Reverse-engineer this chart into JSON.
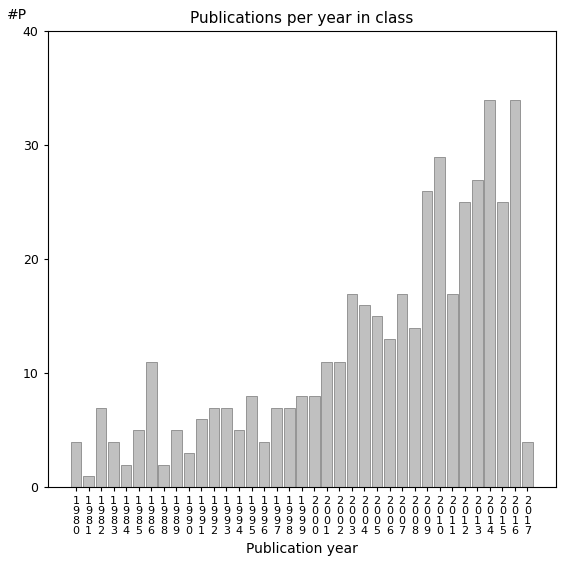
{
  "title": "Publications per year in class",
  "xlabel": "Publication year",
  "ylabel": "#P",
  "ylim": [
    0,
    40
  ],
  "yticks": [
    0,
    10,
    20,
    30,
    40
  ],
  "bar_color": "#c0c0c0",
  "bar_edgecolor": "#888888",
  "categories": [
    "1\n9\n8\n0",
    "1\n9\n8\n1",
    "1\n9\n8\n2",
    "1\n9\n8\n3",
    "1\n9\n8\n4",
    "1\n9\n8\n5",
    "1\n9\n8\n6",
    "1\n9\n8\n8",
    "1\n9\n8\n9",
    "1\n9\n9\n0",
    "1\n9\n9\n1",
    "1\n9\n9\n2",
    "1\n9\n9\n3",
    "1\n9\n9\n4",
    "1\n9\n9\n5",
    "1\n9\n9\n6",
    "1\n9\n9\n7",
    "1\n9\n9\n8",
    "1\n9\n9\n9",
    "2\n0\n0\n0",
    "2\n0\n0\n1",
    "2\n0\n0\n2",
    "2\n0\n0\n3",
    "2\n0\n0\n4",
    "2\n0\n0\n5",
    "2\n0\n0\n6",
    "2\n0\n0\n7",
    "2\n0\n0\n8",
    "2\n0\n0\n9",
    "2\n0\n1\n0",
    "2\n0\n1\n1",
    "2\n0\n1\n2",
    "2\n0\n1\n3",
    "2\n0\n1\n4",
    "2\n0\n1\n5",
    "2\n0\n1\n6",
    "2\n0\n1\n7"
  ],
  "values": [
    4,
    1,
    7,
    4,
    2,
    5,
    11,
    2,
    5,
    3,
    6,
    7,
    7,
    5,
    8,
    4,
    7,
    7,
    8,
    8,
    11,
    11,
    17,
    16,
    15,
    13,
    17,
    14,
    26,
    29,
    17,
    25,
    27,
    34,
    25,
    34,
    4
  ],
  "figsize": [
    5.67,
    5.67
  ],
  "dpi": 100
}
